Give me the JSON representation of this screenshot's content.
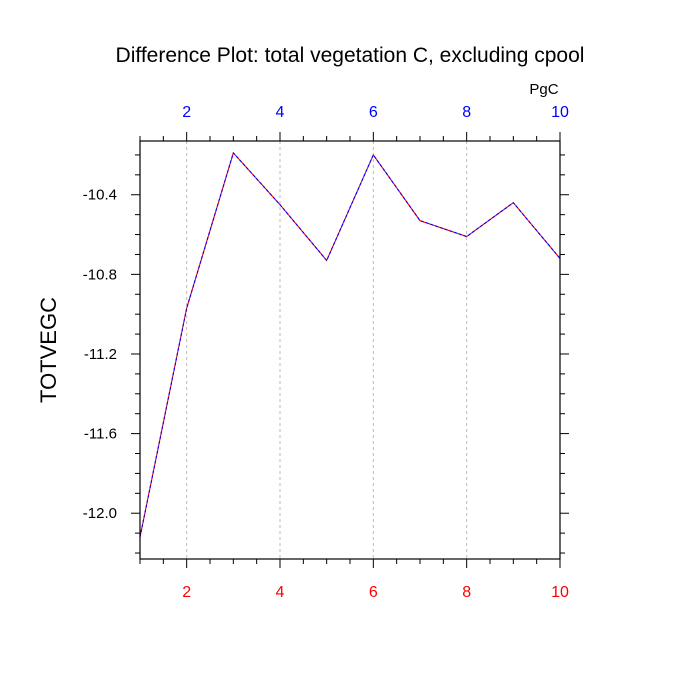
{
  "chart_data": {
    "type": "line",
    "title": "Difference Plot: total vegetation C, excluding cpool",
    "units": "PgC",
    "xlabel": "",
    "ylabel": "TOTVEGC",
    "xlim": [
      1,
      10
    ],
    "ylim": [
      -12.23,
      -10.13
    ],
    "x_ticks_major": [
      2,
      4,
      6,
      8,
      10
    ],
    "x_ticks_minor": [
      1,
      1.5,
      2,
      2.5,
      3,
      3.5,
      4,
      4.5,
      5,
      5.5,
      6,
      6.5,
      7,
      7.5,
      8,
      8.5,
      9,
      9.5,
      10
    ],
    "x_tick_labels": [
      "2",
      "4",
      "6",
      "8",
      "10"
    ],
    "y_ticks_major": [
      -12.0,
      -11.6,
      -11.2,
      -10.8,
      -10.4
    ],
    "y_ticks_minor": [
      -12.2,
      -12.1,
      -12.0,
      -11.9,
      -11.8,
      -11.7,
      -11.6,
      -11.5,
      -11.4,
      -11.3,
      -11.2,
      -11.1,
      -11.0,
      -10.9,
      -10.8,
      -10.7,
      -10.6,
      -10.5,
      -10.4,
      -10.3,
      -10.2
    ],
    "y_tick_labels": [
      "-12.0",
      "-11.6",
      "-11.2",
      "-10.8",
      "-10.4"
    ],
    "grid": "vertical dashed at major x ticks",
    "series": [
      {
        "x": [
          1,
          2,
          3,
          4,
          5,
          6,
          7,
          8,
          9,
          10
        ],
        "values": [
          -12.12,
          -10.97,
          -10.19,
          -10.45,
          -10.73,
          -10.2,
          -10.53,
          -10.61,
          -10.44,
          -10.72
        ]
      }
    ],
    "colors": {
      "bottom_ticks": "#ff0000",
      "top_ticks": "#0000ff",
      "line_primary": "#ff0000",
      "line_secondary": "#0000ff",
      "grid": "#bbbbbb",
      "frame": "#000000"
    }
  }
}
